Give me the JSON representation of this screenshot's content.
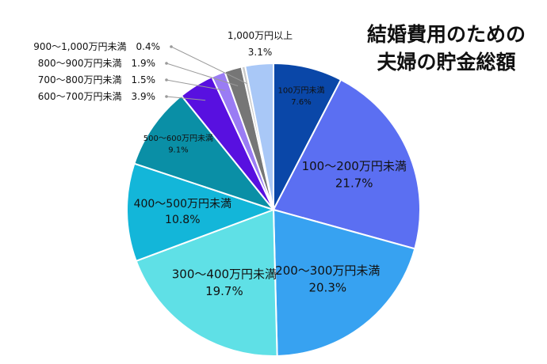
{
  "chart_data": {
    "type": "pie",
    "title_lines": [
      "結婚費用のための",
      "夫婦の貯金総額"
    ],
    "unit": "%",
    "start_angle_deg": 0,
    "direction": "clockwise",
    "slices": [
      {
        "label": "100万円未満",
        "value": 7.6,
        "color": "#0a47a8"
      },
      {
        "label": "100～200万円未満",
        "value": 21.7,
        "color": "#5b6ff2"
      },
      {
        "label": "200～300万円未満",
        "value": 20.3,
        "color": "#37a2f1"
      },
      {
        "label": "300～400万円未満",
        "value": 19.7,
        "color": "#5fe0e6"
      },
      {
        "label": "400～500万円未満",
        "value": 10.8,
        "color": "#13b6d9"
      },
      {
        "label": "500～600万円未満",
        "value": 9.1,
        "color": "#0a8fa6"
      },
      {
        "label": "600～700万円未満",
        "value": 3.9,
        "color": "#5810e0"
      },
      {
        "label": "700～800万円未満",
        "value": 1.5,
        "color": "#9a7cf4"
      },
      {
        "label": "800～900万円未満",
        "value": 1.9,
        "color": "#767676"
      },
      {
        "label": "900～1,000万円未満",
        "value": 0.4,
        "color": "#c9c9c9"
      },
      {
        "label": "1,000万円以上",
        "value": 3.1,
        "color": "#a9c8f7"
      }
    ]
  }
}
